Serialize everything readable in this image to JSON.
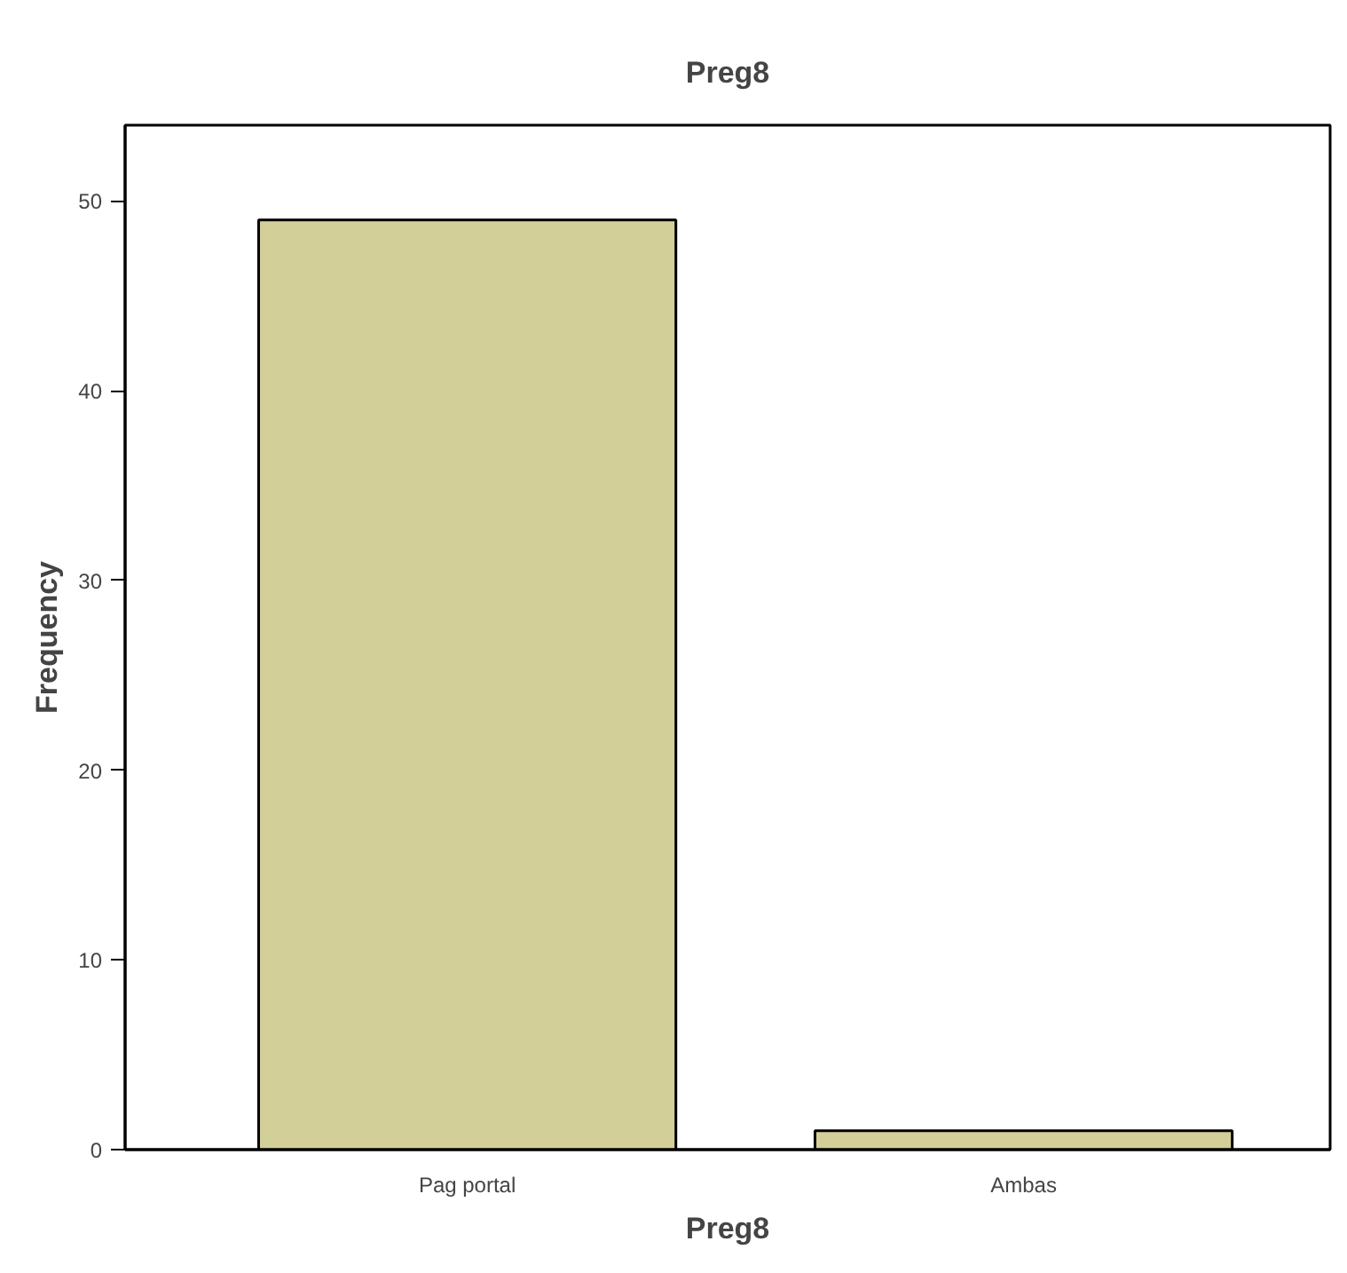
{
  "chart_data": {
    "type": "bar",
    "title": "Preg8",
    "xlabel": "Preg8",
    "ylabel": "Frequency",
    "categories": [
      "Pag portal",
      "Ambas"
    ],
    "values": [
      49,
      1
    ],
    "color": "#d3cf99",
    "ylim": [
      0,
      54
    ],
    "yticks": [
      0,
      10,
      20,
      30,
      40,
      50
    ],
    "grid": false
  }
}
